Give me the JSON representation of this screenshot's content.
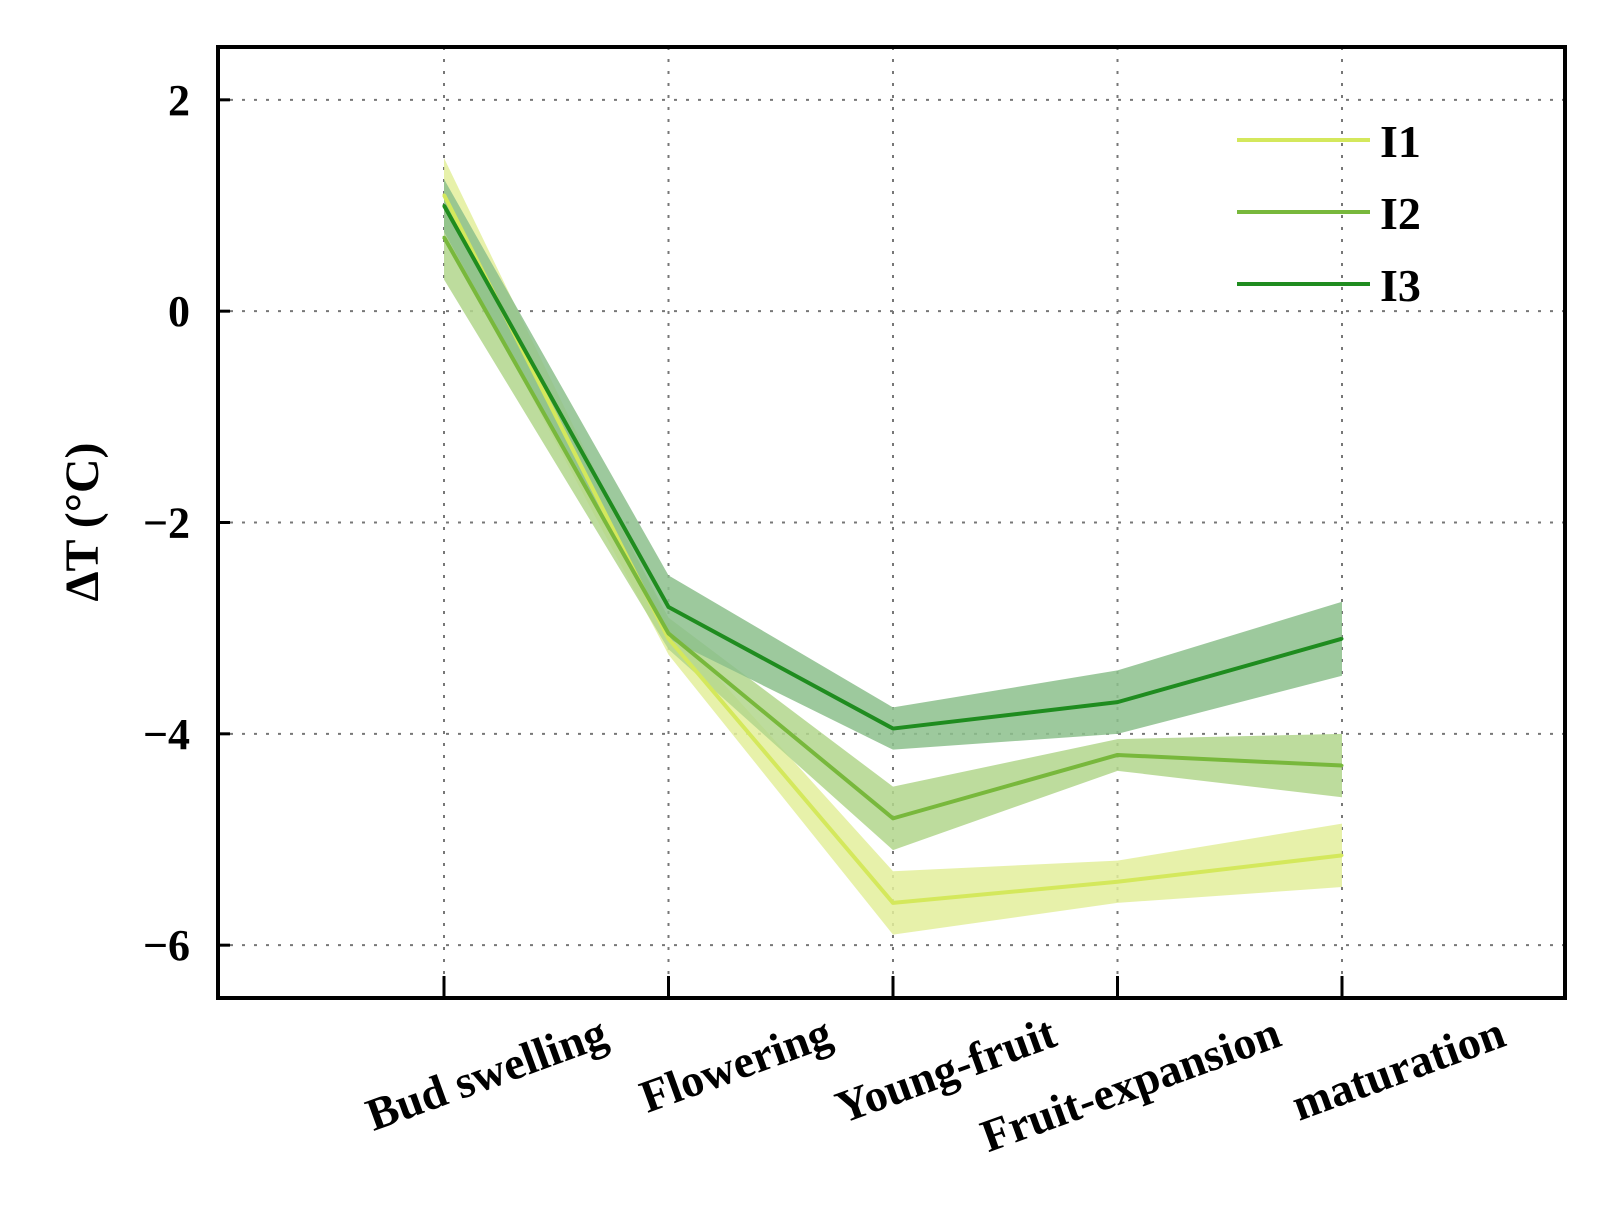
{
  "chart_data": {
    "type": "line",
    "title": "",
    "xlabel": "",
    "ylabel": "ΔT (°C)",
    "categories": [
      "Bud swelling",
      "Flowering",
      "Young-fruit",
      "Fruit-expansion",
      "maturation"
    ],
    "ylim": [
      -6.5,
      2.5
    ],
    "yticks": [
      2,
      0,
      -2,
      -4,
      -6
    ],
    "ytick_labels": [
      "2",
      "0",
      "−2",
      "−4",
      "−6"
    ],
    "grid": true,
    "legend_position": "top-right",
    "series": [
      {
        "name": "I1",
        "color": "#d4e85c",
        "band_color": "#e3ee9b",
        "values": [
          1.1,
          -3.1,
          -5.6,
          -5.4,
          -5.15
        ],
        "lower": [
          0.75,
          -3.25,
          -5.9,
          -5.6,
          -5.45
        ],
        "upper": [
          1.45,
          -2.95,
          -5.3,
          -5.2,
          -4.85
        ]
      },
      {
        "name": "I2",
        "color": "#78b83c",
        "band_color": "#b2d68c",
        "values": [
          0.7,
          -3.05,
          -4.8,
          -4.2,
          -4.3
        ],
        "lower": [
          0.3,
          -3.2,
          -5.1,
          -4.35,
          -4.6
        ],
        "upper": [
          1.1,
          -2.9,
          -4.5,
          -4.05,
          -4.0
        ]
      },
      {
        "name": "I3",
        "color": "#1f8c1f",
        "band_color": "#8cc08c",
        "values": [
          1.0,
          -2.8,
          -3.95,
          -3.7,
          -3.1
        ],
        "lower": [
          0.75,
          -3.1,
          -4.15,
          -4.0,
          -3.45
        ],
        "upper": [
          1.25,
          -2.5,
          -3.75,
          -3.4,
          -2.75
        ]
      }
    ]
  }
}
